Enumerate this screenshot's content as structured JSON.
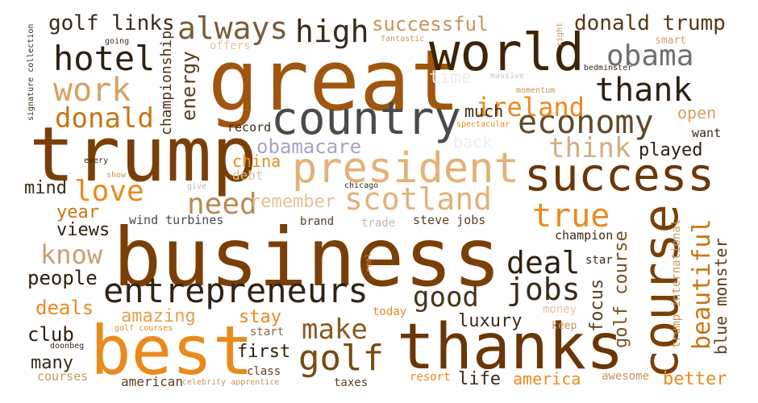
{
  "words": {
    "business": {
      "text": "business",
      "color": "#7a3f08"
    },
    "great": {
      "text": "great",
      "color": "#a0560e"
    },
    "trump": {
      "text": "trump",
      "color": "#7a3f08"
    },
    "best": {
      "text": "best",
      "color": "#ea8a1c"
    },
    "thanks": {
      "text": "thanks",
      "color": "#6b3607"
    },
    "president": {
      "text": "president",
      "color": "#e3b277"
    },
    "world": {
      "text": "world",
      "color": "#3f2303"
    },
    "country": {
      "text": "country",
      "color": "#4a4a4a"
    },
    "success": {
      "text": "success",
      "color": "#6b3607"
    },
    "course": {
      "text": "course",
      "color": "#7a3f08"
    },
    "entrepreneurs": {
      "text": "entrepreneurs",
      "color": "#2f2414"
    },
    "scotland": {
      "text": "scotland",
      "color": "#e3b277"
    },
    "economy": {
      "text": "economy",
      "color": "#5f4a2a"
    },
    "always": {
      "text": "always",
      "color": "#7a5c38"
    },
    "high": {
      "text": "high",
      "color": "#3a2a18"
    },
    "hotel": {
      "text": "hotel",
      "color": "#2e2010"
    },
    "obama": {
      "text": "obama",
      "color": "#707070"
    },
    "work": {
      "text": "work",
      "color": "#d8a060"
    },
    "ireland": {
      "text": "ireland",
      "color": "#ea8a1c"
    },
    "thank": {
      "text": "thank",
      "color": "#2e2010"
    },
    "donald": {
      "text": "donald",
      "color": "#c77612"
    },
    "think": {
      "text": "think",
      "color": "#d4ad7e"
    },
    "need": {
      "text": "need",
      "color": "#b98a52"
    },
    "love": {
      "text": "love",
      "color": "#ea8a1c"
    },
    "true": {
      "text": "true",
      "color": "#ea8a1c"
    },
    "deal": {
      "text": "deal",
      "color": "#2e2010"
    },
    "jobs": {
      "text": "jobs",
      "color": "#3a2a18"
    },
    "good": {
      "text": "good",
      "color": "#4a3218"
    },
    "make": {
      "text": "make",
      "color": "#8a5a20"
    },
    "golf": {
      "text": "golf",
      "color": "#7a4a10"
    },
    "beautiful": {
      "text": "beautiful",
      "color": "#c77612"
    },
    "know": {
      "text": "know",
      "color": "#c8a070"
    },
    "golf_links": {
      "text": "golf links",
      "color": "#3a2a18"
    },
    "donald_trump": {
      "text": "donald trump",
      "color": "#5a3810"
    },
    "successful": {
      "text": "successful",
      "color": "#c89558"
    },
    "obamacare": {
      "text": "obamacare",
      "color": "#a8a2c4"
    },
    "remember": {
      "text": "remember",
      "color": "#e3c296"
    },
    "energy": {
      "text": "energy",
      "color": "#5a4020"
    },
    "championship": {
      "text": "championship",
      "color": "#4a3218"
    },
    "much": {
      "text": "much",
      "color": "#3a2a18"
    },
    "open": {
      "text": "open",
      "color": "#d8a060"
    },
    "played": {
      "text": "played",
      "color": "#2e2010"
    },
    "want": {
      "text": "want",
      "color": "#3a2a18"
    },
    "record": {
      "text": "record",
      "color": "#3a2a18"
    },
    "china": {
      "text": "china",
      "color": "#ea8a1c"
    },
    "debt": {
      "text": "debt",
      "color": "#e3c296"
    },
    "mind": {
      "text": "mind",
      "color": "#3a2a18"
    },
    "year": {
      "text": "year",
      "color": "#c77612"
    },
    "views": {
      "text": "views",
      "color": "#2e2010"
    },
    "people": {
      "text": "people",
      "color": "#2e2010"
    },
    "deals": {
      "text": "deals",
      "color": "#ea8a1c"
    },
    "amazing": {
      "text": "amazing",
      "color": "#e3a050"
    },
    "stay": {
      "text": "stay",
      "color": "#ea8a1c"
    },
    "first": {
      "text": "first",
      "color": "#2e2010"
    },
    "luxury": {
      "text": "luxury",
      "color": "#3a2a18"
    },
    "club": {
      "text": "club",
      "color": "#2e2010"
    },
    "many": {
      "text": "many",
      "color": "#3a2a18"
    },
    "courses": {
      "text": "courses",
      "color": "#c89558"
    },
    "american": {
      "text": "american",
      "color": "#5a4020"
    },
    "america": {
      "text": "america",
      "color": "#ea8a1c"
    },
    "life": {
      "text": "life",
      "color": "#3a2a18"
    },
    "better": {
      "text": "better",
      "color": "#ea8a1c"
    },
    "awesome": {
      "text": "awesome",
      "color": "#c89558"
    },
    "resort": {
      "text": "resort",
      "color": "#ea8a1c"
    },
    "taxes": {
      "text": "taxes",
      "color": "#5a4020"
    },
    "class": {
      "text": "class",
      "color": "#5a4020"
    },
    "start": {
      "text": "start",
      "color": "#8a6a40"
    },
    "keep": {
      "text": "keep",
      "color": "#c89558"
    },
    "money": {
      "text": "money",
      "color": "#e8c39a"
    },
    "today": {
      "text": "today",
      "color": "#ea8a1c"
    },
    "focus": {
      "text": "focus",
      "color": "#5a4020"
    },
    "golf_course": {
      "text": "golf course",
      "color": "#7a5020"
    },
    "trump_international": {
      "text": "trump international",
      "color": "#c89558"
    },
    "blue_monster": {
      "text": "blue monster",
      "color": "#5a4020"
    },
    "champion": {
      "text": "champion",
      "color": "#3a2a18"
    },
    "star": {
      "text": "star",
      "color": "#3a2a18"
    },
    "steve_jobs": {
      "text": "steve jobs",
      "color": "#5a4020"
    },
    "trade": {
      "text": "trade",
      "color": "#b8b8b8"
    },
    "brand": {
      "text": "brand",
      "color": "#5a4020"
    },
    "wind_turbines": {
      "text": "wind turbines",
      "color": "#4a4a4a"
    },
    "chicago": {
      "text": "chicago",
      "color": "#3a2a18"
    },
    "give": {
      "text": "give",
      "color": "#b8b8b8"
    },
    "show": {
      "text": "show",
      "color": "#c89558"
    },
    "every": {
      "text": "every",
      "color": "#3a2a18"
    },
    "offers": {
      "text": "offers",
      "color": "#e8c39a"
    },
    "going": {
      "text": "going",
      "color": "#3a2a18"
    },
    "fantastic": {
      "text": "fantastic",
      "color": "#c89558"
    },
    "smart": {
      "text": "smart",
      "color": "#d8a060"
    },
    "bedminster": {
      "text": "bedminster",
      "color": "#3a2a18"
    },
    "massive": {
      "text": "massive",
      "color": "#c8c8c8"
    },
    "right": {
      "text": "right",
      "color": "#c89558"
    },
    "momentum": {
      "text": "momentum",
      "color": "#c89558"
    },
    "spectacular": {
      "text": "spectacular",
      "color": "#ea8a1c"
    },
    "time": {
      "text": "time",
      "color": "#ededed"
    },
    "back": {
      "text": "back",
      "color": "#ededed"
    },
    "real": {
      "text": "real",
      "color": "#c89558"
    },
    "signature_collection": {
      "text": "signature collection",
      "color": "#3a2a18"
    },
    "golf_courses": {
      "text": "golf courses",
      "color": "#ea8a1c"
    },
    "doonbeg": {
      "text": "doonbeg",
      "color": "#3a2a18"
    },
    "celebrity_apprentice": {
      "text": "celebrity apprentice",
      "color": "#c89558"
    }
  }
}
